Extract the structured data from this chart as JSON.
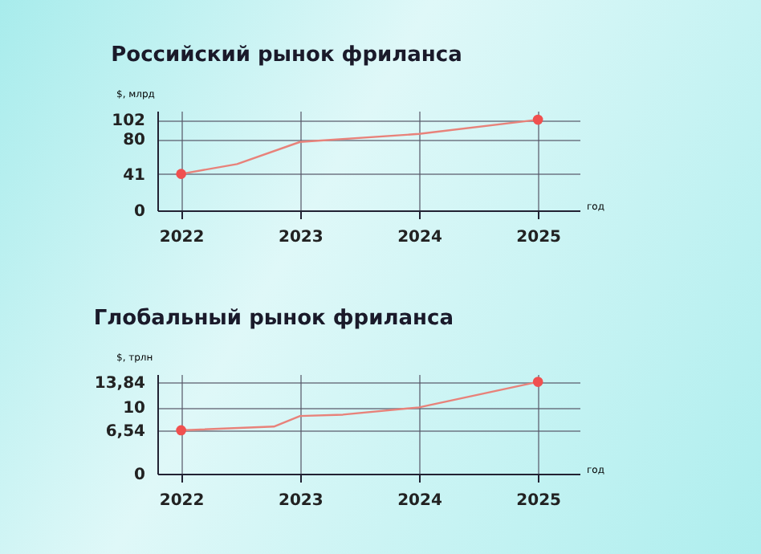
{
  "chart_data": [
    {
      "type": "line",
      "title": "Российский рынок фриланса",
      "xlabel": "год",
      "ylabel": "$, млрд",
      "xlim": [
        2021.8,
        2025.35
      ],
      "xticks": [
        2022,
        2023,
        2024,
        2025
      ],
      "ylim": [
        0,
        112
      ],
      "yticks": [
        0,
        41,
        80,
        102
      ],
      "grid": true,
      "series": [
        {
          "type": "line",
          "color": "#e8827a",
          "marker": "none",
          "x": [
            2022,
            2022.47,
            2023,
            2024,
            2025
          ],
          "values": [
            41,
            52,
            77,
            86,
            102
          ]
        },
        {
          "type": "scatter",
          "color": "#f0504f",
          "marker": "circle",
          "x": [
            2022,
            2025
          ],
          "values": [
            41,
            102
          ]
        }
      ]
    },
    {
      "type": "line",
      "title": "Глобальный рынок фриланса",
      "xlabel": "год",
      "ylabel": "$, трлн",
      "xlim": [
        2021.8,
        2025.35
      ],
      "xticks": [
        2022,
        2023,
        2024,
        2025
      ],
      "ylim": [
        0,
        15
      ],
      "yticks": [
        0,
        {
          "value": 6.54,
          "label": "6,54"
        },
        10,
        {
          "value": 13.84,
          "label": "13,84"
        }
      ],
      "grid": true,
      "series": [
        {
          "type": "line",
          "color": "#e8827a",
          "marker": "none",
          "x": [
            2022,
            2022.78,
            2023,
            2023.36,
            2024,
            2025
          ],
          "values": [
            6.54,
            7.1,
            8.7,
            8.9,
            10,
            13.84
          ]
        },
        {
          "type": "scatter",
          "color": "#f0504f",
          "marker": "circle",
          "x": [
            2022,
            2025
          ],
          "values": [
            6.54,
            13.84
          ]
        }
      ]
    }
  ]
}
